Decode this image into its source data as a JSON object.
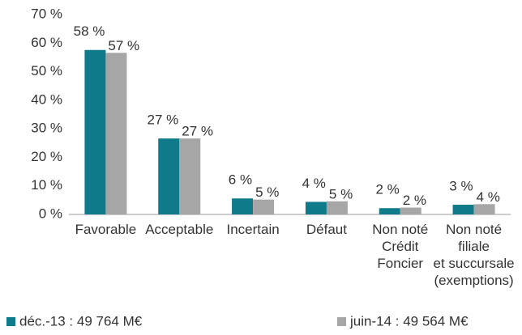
{
  "chart_data": {
    "type": "bar",
    "categories": [
      "Favorable",
      "Acceptable",
      "Incertain",
      "Défaut",
      "Non noté\nCrédit\nFoncier",
      "Non noté\nfiliale\net succursale\n(exemptions)"
    ],
    "series": [
      {
        "name": "déc.-13 : 49 764 M€",
        "color": "#0e7a8a",
        "values": [
          57.6,
          26.6,
          5.6,
          4.4,
          2.2,
          3.4
        ],
        "value_labels": [
          "58 %",
          "27 %",
          "6 %",
          "4 %",
          "2 %",
          "3 %"
        ]
      },
      {
        "name": "juin-14 : 49 564 M€",
        "color": "#a6a6a6",
        "values": [
          56.6,
          26.6,
          5.2,
          4.6,
          2.4,
          3.6
        ],
        "value_labels": [
          "57 %",
          "27 %",
          "5 %",
          "5 %",
          "2 %",
          "4 %"
        ]
      }
    ],
    "ylim": [
      0,
      70
    ],
    "yticks": [
      {
        "value": 0,
        "label": "0 %"
      },
      {
        "value": 10,
        "label": "10 %"
      },
      {
        "value": 20,
        "label": "20 %"
      },
      {
        "value": 30,
        "label": "30 %"
      },
      {
        "value": 40,
        "label": "40 %"
      },
      {
        "value": 50,
        "label": "50 %"
      },
      {
        "value": 60,
        "label": "60 %"
      },
      {
        "value": 70,
        "label": "70 %"
      }
    ],
    "grid": false,
    "legend": "bottom"
  }
}
